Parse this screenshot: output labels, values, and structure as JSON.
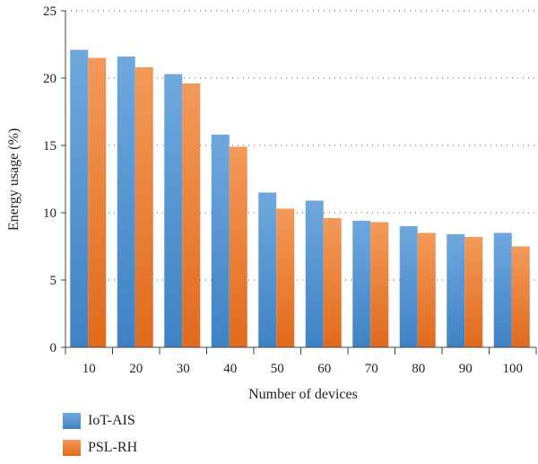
{
  "chart_data": {
    "type": "bar",
    "xlabel": "Number of devices",
    "ylabel": "Energy usage (%)",
    "categories": [
      "10",
      "20",
      "30",
      "40",
      "50",
      "60",
      "70",
      "80",
      "90",
      "100"
    ],
    "ylim": [
      0,
      25
    ],
    "yticks": [
      0,
      5,
      10,
      15,
      20,
      25
    ],
    "grid": "horizontal dotted",
    "legend": "bottom-left",
    "series": [
      {
        "name": "IoT-AIS",
        "color": "#5b9bd5",
        "values": [
          22.1,
          21.6,
          20.3,
          15.8,
          11.5,
          10.9,
          9.4,
          9.0,
          8.4,
          8.5
        ]
      },
      {
        "name": "PSL-RH",
        "color": "#ed7d31",
        "values": [
          21.5,
          20.8,
          19.6,
          14.9,
          10.3,
          9.6,
          9.3,
          8.5,
          8.2,
          7.5
        ]
      }
    ]
  }
}
